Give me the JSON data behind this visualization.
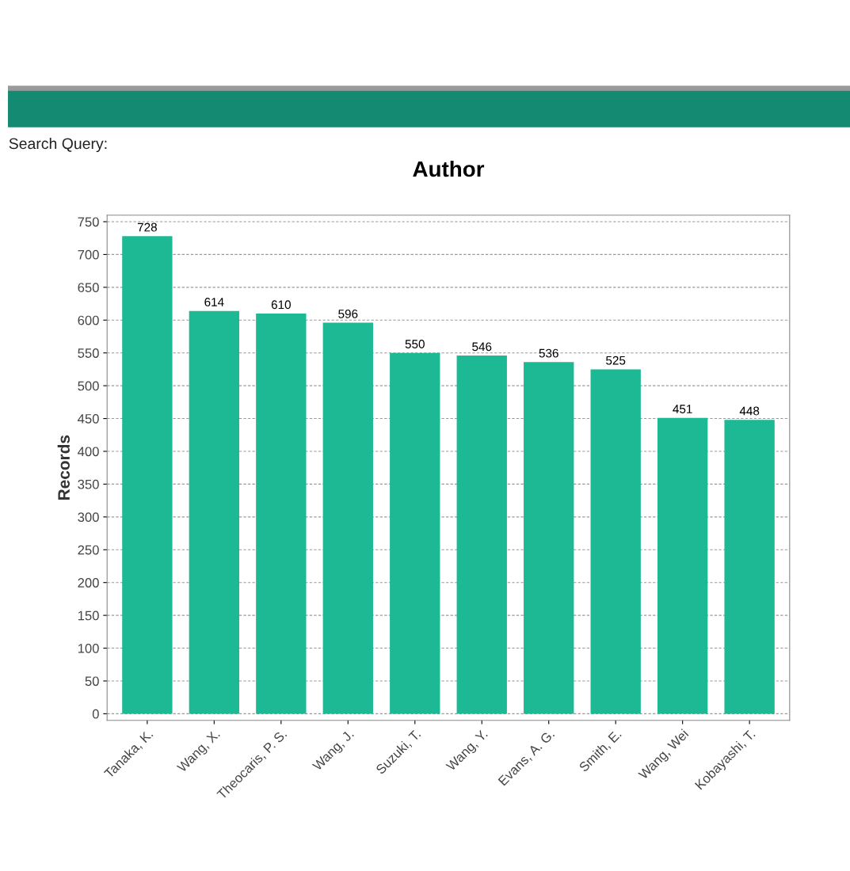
{
  "chart_data": {
    "type": "bar",
    "title": "Author",
    "ylabel": "Records",
    "annotations": [
      "Search Query:"
    ],
    "categories": [
      "Tanaka, K.",
      "Wang, X.",
      "Theocaris, P. S.",
      "Wang, J.",
      "Suzuki, T.",
      "Wang, Y.",
      "Evans, A. G.",
      "Smith, E.",
      "Wang, Wei",
      "Kobayashi, T."
    ],
    "values": [
      728,
      614,
      610,
      596,
      550,
      546,
      536,
      525,
      451,
      448
    ],
    "color": "#1db995",
    "ylim": [
      -10,
      760
    ],
    "yticks": [
      0,
      50,
      100,
      150,
      200,
      250,
      300,
      350,
      400,
      450,
      500,
      550,
      600,
      650,
      700,
      750
    ],
    "grid": "y",
    "data_labels": true
  }
}
